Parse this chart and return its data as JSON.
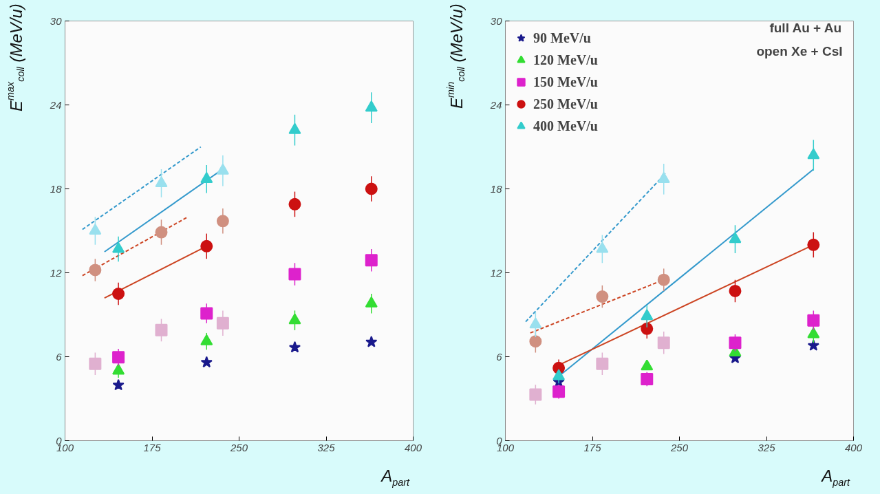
{
  "chart_data": [
    {
      "type": "scatter",
      "xlabel": "A$_{part}$",
      "ylabel": "E$^{max}$$_{coll}$ (MeV/u)",
      "xlim": [
        100,
        400
      ],
      "ylim": [
        0,
        30
      ],
      "xticks": [
        100,
        175,
        250,
        325,
        400
      ],
      "yticks": [
        0,
        6,
        12,
        18,
        24,
        30
      ],
      "grid": false,
      "legend": false,
      "series": [
        {
          "type": "line",
          "color": "#3399cc",
          "line_style": "dashed",
          "x": [
            115,
            217
          ],
          "values": [
            15.1,
            21.0
          ]
        },
        {
          "type": "line",
          "color": "#cc4422",
          "line_style": "dashed",
          "x": [
            115,
            206
          ],
          "values": [
            11.8,
            16.0
          ]
        },
        {
          "type": "line",
          "color": "#3399cc",
          "line_style": "solid",
          "x": [
            134,
            234
          ],
          "values": [
            13.5,
            19.3
          ]
        },
        {
          "type": "line",
          "color": "#cc4422",
          "line_style": "solid",
          "x": [
            134,
            222
          ],
          "values": [
            10.2,
            13.9
          ]
        },
        {
          "marker": "square",
          "color": "#e0b0d0",
          "x": [
            126,
            183,
            236
          ],
          "values": [
            5.5,
            7.9,
            8.4
          ],
          "errors": [
            0.8,
            0.8,
            0.9
          ]
        },
        {
          "marker": "circle",
          "color": "#d09080",
          "x": [
            126,
            183,
            236
          ],
          "values": [
            12.2,
            14.9,
            15.7
          ],
          "errors": [
            0.8,
            0.9,
            0.9
          ]
        },
        {
          "marker": "triangle",
          "color": "#99e0ee",
          "x": [
            126,
            183,
            236
          ],
          "values": [
            15.0,
            18.4,
            19.3
          ],
          "errors": [
            1.0,
            1.0,
            1.1
          ]
        },
        {
          "marker": "star",
          "color": "#1a1a8c",
          "x": [
            146,
            222,
            298,
            364
          ],
          "values": [
            3.97,
            5.6,
            6.67,
            7.05
          ]
        },
        {
          "marker": "triangle",
          "color": "#33dd33",
          "x": [
            146,
            222,
            298,
            364
          ],
          "values": [
            5.0,
            7.1,
            8.6,
            9.8
          ],
          "errors": [
            0.5,
            0.6,
            0.7,
            0.7
          ]
        },
        {
          "marker": "square",
          "color": "#dd22cc",
          "x": [
            146,
            222,
            298,
            364
          ],
          "values": [
            5.96,
            9.1,
            11.9,
            12.9
          ],
          "errors": [
            0.6,
            0.7,
            0.8,
            0.8
          ]
        },
        {
          "marker": "circle",
          "color": "#cc1111",
          "x": [
            146,
            222,
            298,
            364
          ],
          "values": [
            10.5,
            13.9,
            16.9,
            18.0
          ],
          "errors": [
            0.8,
            0.9,
            0.9,
            0.9
          ]
        },
        {
          "marker": "triangle",
          "color": "#33cccc",
          "x": [
            146,
            222,
            298,
            364
          ],
          "values": [
            13.7,
            18.7,
            22.2,
            23.8
          ],
          "errors": [
            0.9,
            1.0,
            1.1,
            1.1
          ]
        }
      ]
    },
    {
      "type": "scatter",
      "xlabel": "A$_{part}$",
      "ylabel": "E$^{min}$$_{coll}$ (MeV/u)",
      "xlim": [
        100,
        400
      ],
      "ylim": [
        0,
        30
      ],
      "xticks": [
        100,
        175,
        250,
        325,
        400
      ],
      "yticks": [
        0,
        6,
        12,
        18,
        24,
        30
      ],
      "grid": false,
      "legend": "top left",
      "annotations": [
        "full Au + Au",
        "open Xe + CsI"
      ],
      "series": [
        {
          "type": "line",
          "color": "#3399cc",
          "line_style": "dashed",
          "x": [
            117.5,
            238
          ],
          "values": [
            8.5,
            19.1
          ]
        },
        {
          "type": "line",
          "color": "#cc4422",
          "line_style": "dashed",
          "x": [
            121.5,
            236.5
          ],
          "values": [
            7.7,
            11.5
          ]
        },
        {
          "type": "line",
          "color": "#3399cc",
          "line_style": "solid",
          "x": [
            146,
            365.5
          ],
          "values": [
            4.6,
            19.4
          ]
        },
        {
          "type": "line",
          "color": "#cc4422",
          "line_style": "solid",
          "x": [
            146,
            365.5
          ],
          "values": [
            5.4,
            14.0
          ]
        },
        {
          "marker": "square",
          "color": "#e0b0d0",
          "x": [
            126,
            183.5,
            236.5
          ],
          "values": [
            3.3,
            5.5,
            7.0
          ],
          "errors": [
            0.7,
            0.8,
            0.8
          ]
        },
        {
          "marker": "circle",
          "color": "#d09080",
          "x": [
            126,
            183.5,
            236.5
          ],
          "values": [
            7.1,
            10.3,
            11.5
          ],
          "errors": [
            0.8,
            0.8,
            0.8
          ]
        },
        {
          "marker": "triangle",
          "color": "#99e0ee",
          "x": [
            126,
            183.5,
            236.5
          ],
          "values": [
            8.3,
            13.7,
            18.7
          ],
          "errors": [
            0.9,
            1.0,
            1.1
          ]
        },
        {
          "name": "90 MeV/u",
          "marker": "star",
          "color": "#1a1a8c",
          "x": [
            146,
            298,
            365.5
          ],
          "values": [
            4.2,
            5.9,
            6.8
          ]
        },
        {
          "name": "120 MeV/u",
          "marker": "triangle",
          "color": "#33dd33",
          "x": [
            222,
            298,
            365.5
          ],
          "values": [
            5.3,
            6.3,
            7.6
          ],
          "errors": [
            null,
            null,
            0.6
          ]
        },
        {
          "name": "150 MeV/u",
          "marker": "square",
          "color": "#dd22cc",
          "x": [
            146,
            222,
            298,
            365.5
          ],
          "values": [
            3.5,
            4.4,
            7.0,
            8.6
          ],
          "errors": [
            0.5,
            0.5,
            0.6,
            0.7
          ]
        },
        {
          "name": "250 MeV/u",
          "marker": "circle",
          "color": "#cc1111",
          "x": [
            146,
            222,
            298,
            365.5
          ],
          "values": [
            5.2,
            8.0,
            10.7,
            14.0
          ],
          "errors": [
            0.6,
            0.7,
            0.8,
            0.9
          ]
        },
        {
          "name": "400 MeV/u",
          "marker": "triangle",
          "color": "#33cccc",
          "x": [
            146,
            222,
            298,
            365.5
          ],
          "values": [
            4.6,
            8.9,
            14.4,
            20.4
          ],
          "errors": [
            0.5,
            0.8,
            1.0,
            1.1
          ]
        }
      ]
    }
  ]
}
